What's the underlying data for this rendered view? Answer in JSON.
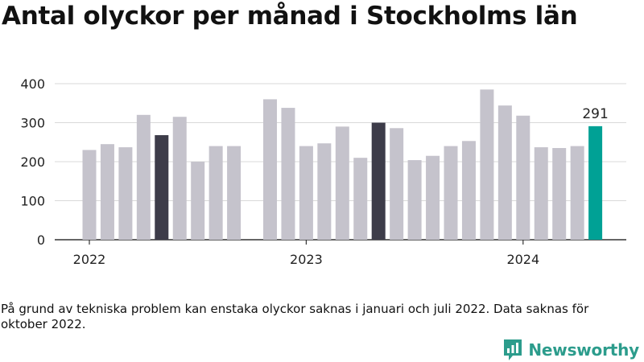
{
  "title": "Antal olyckor per månad i Stockholms län",
  "note": "På grund av tekniska problem kan enstaka olyckor saknas i januari och juli 2022. Data saknas för oktober 2022.",
  "brand": {
    "name": "Newsworthy",
    "color": "#2c9c8c"
  },
  "chart_data": {
    "type": "bar",
    "xlabel": "",
    "ylabel": "",
    "ylim": [
      0,
      400
    ],
    "yticks": [
      0,
      100,
      200,
      300,
      400
    ],
    "categories": [
      "2022-01",
      "2022-02",
      "2022-03",
      "2022-04",
      "2022-05",
      "2022-06",
      "2022-07",
      "2022-08",
      "2022-09",
      "2022-10",
      "2022-11",
      "2022-12",
      "2023-01",
      "2023-02",
      "2023-03",
      "2023-04",
      "2023-05",
      "2023-06",
      "2023-07",
      "2023-08",
      "2023-09",
      "2023-10",
      "2023-11",
      "2023-12",
      "2024-01",
      "2024-02",
      "2024-03",
      "2024-04",
      "2024-05",
      "2024-06"
    ],
    "values": [
      230,
      245,
      237,
      320,
      268,
      315,
      200,
      240,
      240,
      null,
      360,
      338,
      240,
      247,
      290,
      210,
      300,
      286,
      204,
      215,
      240,
      253,
      385,
      344,
      318,
      237,
      235,
      240,
      291,
      null
    ],
    "x_ticks": [
      {
        "label": "2022",
        "index": 0
      },
      {
        "label": "2023",
        "index": 12
      },
      {
        "label": "2024",
        "index": 24
      }
    ],
    "highlight": [
      {
        "index": 4,
        "color": "#3d3c49"
      },
      {
        "index": 16,
        "color": "#3d3c49"
      },
      {
        "index": 28,
        "color": "#00a195",
        "label": "291"
      }
    ],
    "colors": {
      "default": "#c5c3cc",
      "axis": "#333333",
      "grid": "#d9d9d9"
    },
    "grid": true
  }
}
